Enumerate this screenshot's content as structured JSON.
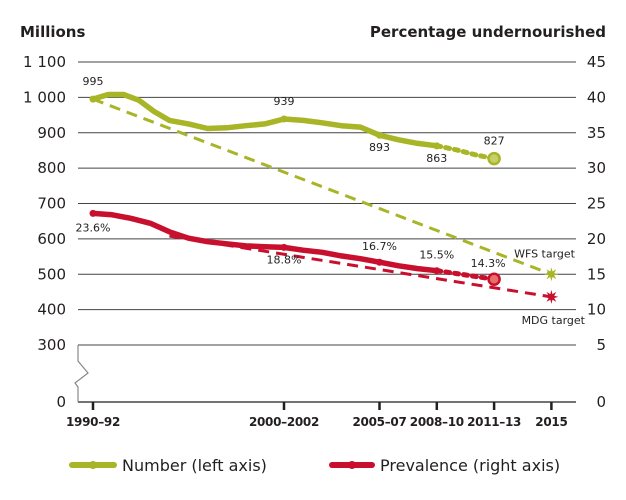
{
  "chart_data": {
    "type": "line",
    "title": "",
    "left_axis": {
      "label": "Millions",
      "ticks": [
        {
          "value": 1100,
          "label": "1 100"
        },
        {
          "value": 1000,
          "label": "1 000"
        },
        {
          "value": 900,
          "label": "900"
        },
        {
          "value": 800,
          "label": "800"
        },
        {
          "value": 700,
          "label": "700"
        },
        {
          "value": 600,
          "label": "600"
        },
        {
          "value": 500,
          "label": "500"
        },
        {
          "value": 400,
          "label": "400"
        },
        {
          "value": 300,
          "label": "300"
        },
        {
          "value": 0,
          "label": "0"
        }
      ],
      "range": [
        0,
        1100
      ],
      "axis_break": [
        0,
        300
      ]
    },
    "right_axis": {
      "label": "Percentage undernourished",
      "ticks": [
        {
          "value": 45,
          "label": "45"
        },
        {
          "value": 40,
          "label": "40"
        },
        {
          "value": 35,
          "label": "35"
        },
        {
          "value": 30,
          "label": "30"
        },
        {
          "value": 25,
          "label": "25"
        },
        {
          "value": 20,
          "label": "20"
        },
        {
          "value": 15,
          "label": "15"
        },
        {
          "value": 10,
          "label": "10"
        },
        {
          "value": 5,
          "label": "5"
        },
        {
          "value": 0,
          "label": "0"
        }
      ],
      "range": [
        0,
        45
      ]
    },
    "x_ticks": [
      {
        "year": 1991,
        "label": "1990–92"
      },
      {
        "year": 2001,
        "label": "2000–2002"
      },
      {
        "year": 2006,
        "label": "2005–07"
      },
      {
        "year": 2009,
        "label": "2008–10"
      },
      {
        "year": 2012,
        "label": "2011–13"
      },
      {
        "year": 2015,
        "label": "2015"
      }
    ],
    "grid": true,
    "series": [
      {
        "name": "Number (left axis)",
        "axis": "left",
        "color": "#a7b526",
        "points": [
          [
            1991,
            995
          ],
          [
            1991.8,
            1008
          ],
          [
            1992.6,
            1008
          ],
          [
            1993.4,
            992
          ],
          [
            1994.2,
            960
          ],
          [
            1995,
            935
          ],
          [
            1996,
            925
          ],
          [
            1997,
            912
          ],
          [
            1998,
            914
          ],
          [
            1999,
            920
          ],
          [
            2000,
            925
          ],
          [
            2001,
            939
          ],
          [
            2002,
            935
          ],
          [
            2003,
            928
          ],
          [
            2004,
            920
          ],
          [
            2005,
            916
          ],
          [
            2006,
            893
          ],
          [
            2007,
            880
          ],
          [
            2008,
            870
          ],
          [
            2009,
            863
          ]
        ],
        "projection": [
          [
            2009,
            863
          ],
          [
            2010,
            852
          ],
          [
            2011,
            838
          ],
          [
            2012,
            827
          ]
        ],
        "labels": [
          {
            "x": 1991,
            "value": 995,
            "text": "995"
          },
          {
            "x": 2001,
            "value": 939,
            "text": "939"
          },
          {
            "x": 2006,
            "value": 893,
            "text": "893"
          },
          {
            "x": 2009,
            "value": 863,
            "text": "863"
          },
          {
            "x": 2012,
            "value": 827,
            "text": "827"
          }
        ]
      },
      {
        "name": "Prevalence (right axis)",
        "axis": "right",
        "color": "#c8102e",
        "points": [
          [
            1991,
            23.6
          ],
          [
            1992,
            23.4
          ],
          [
            1993,
            22.9
          ],
          [
            1994,
            22.2
          ],
          [
            1995,
            21.0
          ],
          [
            1996,
            20.1
          ],
          [
            1997,
            19.6
          ],
          [
            1998,
            19.3
          ],
          [
            1999,
            19.0
          ],
          [
            2000,
            18.9
          ],
          [
            2001,
            18.8
          ],
          [
            2002,
            18.4
          ],
          [
            2003,
            18.1
          ],
          [
            2004,
            17.6
          ],
          [
            2005,
            17.2
          ],
          [
            2006,
            16.7
          ],
          [
            2007,
            16.2
          ],
          [
            2008,
            15.8
          ],
          [
            2009,
            15.5
          ]
        ],
        "projection": [
          [
            2009,
            15.5
          ],
          [
            2010,
            15.1
          ],
          [
            2011,
            14.7
          ],
          [
            2012,
            14.3
          ]
        ],
        "labels": [
          {
            "x": 1991,
            "value": 23.6,
            "text": "23.6%"
          },
          {
            "x": 2001,
            "value": 18.8,
            "text": "18.8%"
          },
          {
            "x": 2006,
            "value": 16.7,
            "text": "16.7%"
          },
          {
            "x": 2009,
            "value": 15.5,
            "text": "15.5%"
          },
          {
            "x": 2012,
            "value": 14.3,
            "text": "14.3%"
          }
        ]
      }
    ],
    "targets": [
      {
        "name": "WFS target",
        "axis": "left",
        "color": "#a7b526",
        "from": [
          1991,
          995
        ],
        "to": [
          2015,
          500
        ]
      },
      {
        "name": "MDG target",
        "axis": "right",
        "color": "#c8102e",
        "from": [
          1995,
          20.4
        ],
        "to": [
          2015,
          11.8
        ]
      }
    ],
    "legend": {
      "placement": "bottom",
      "items": [
        {
          "label": "Number (left axis)",
          "color": "#a7b526"
        },
        {
          "label": "Prevalence (right axis)",
          "color": "#c8102e"
        }
      ]
    }
  }
}
